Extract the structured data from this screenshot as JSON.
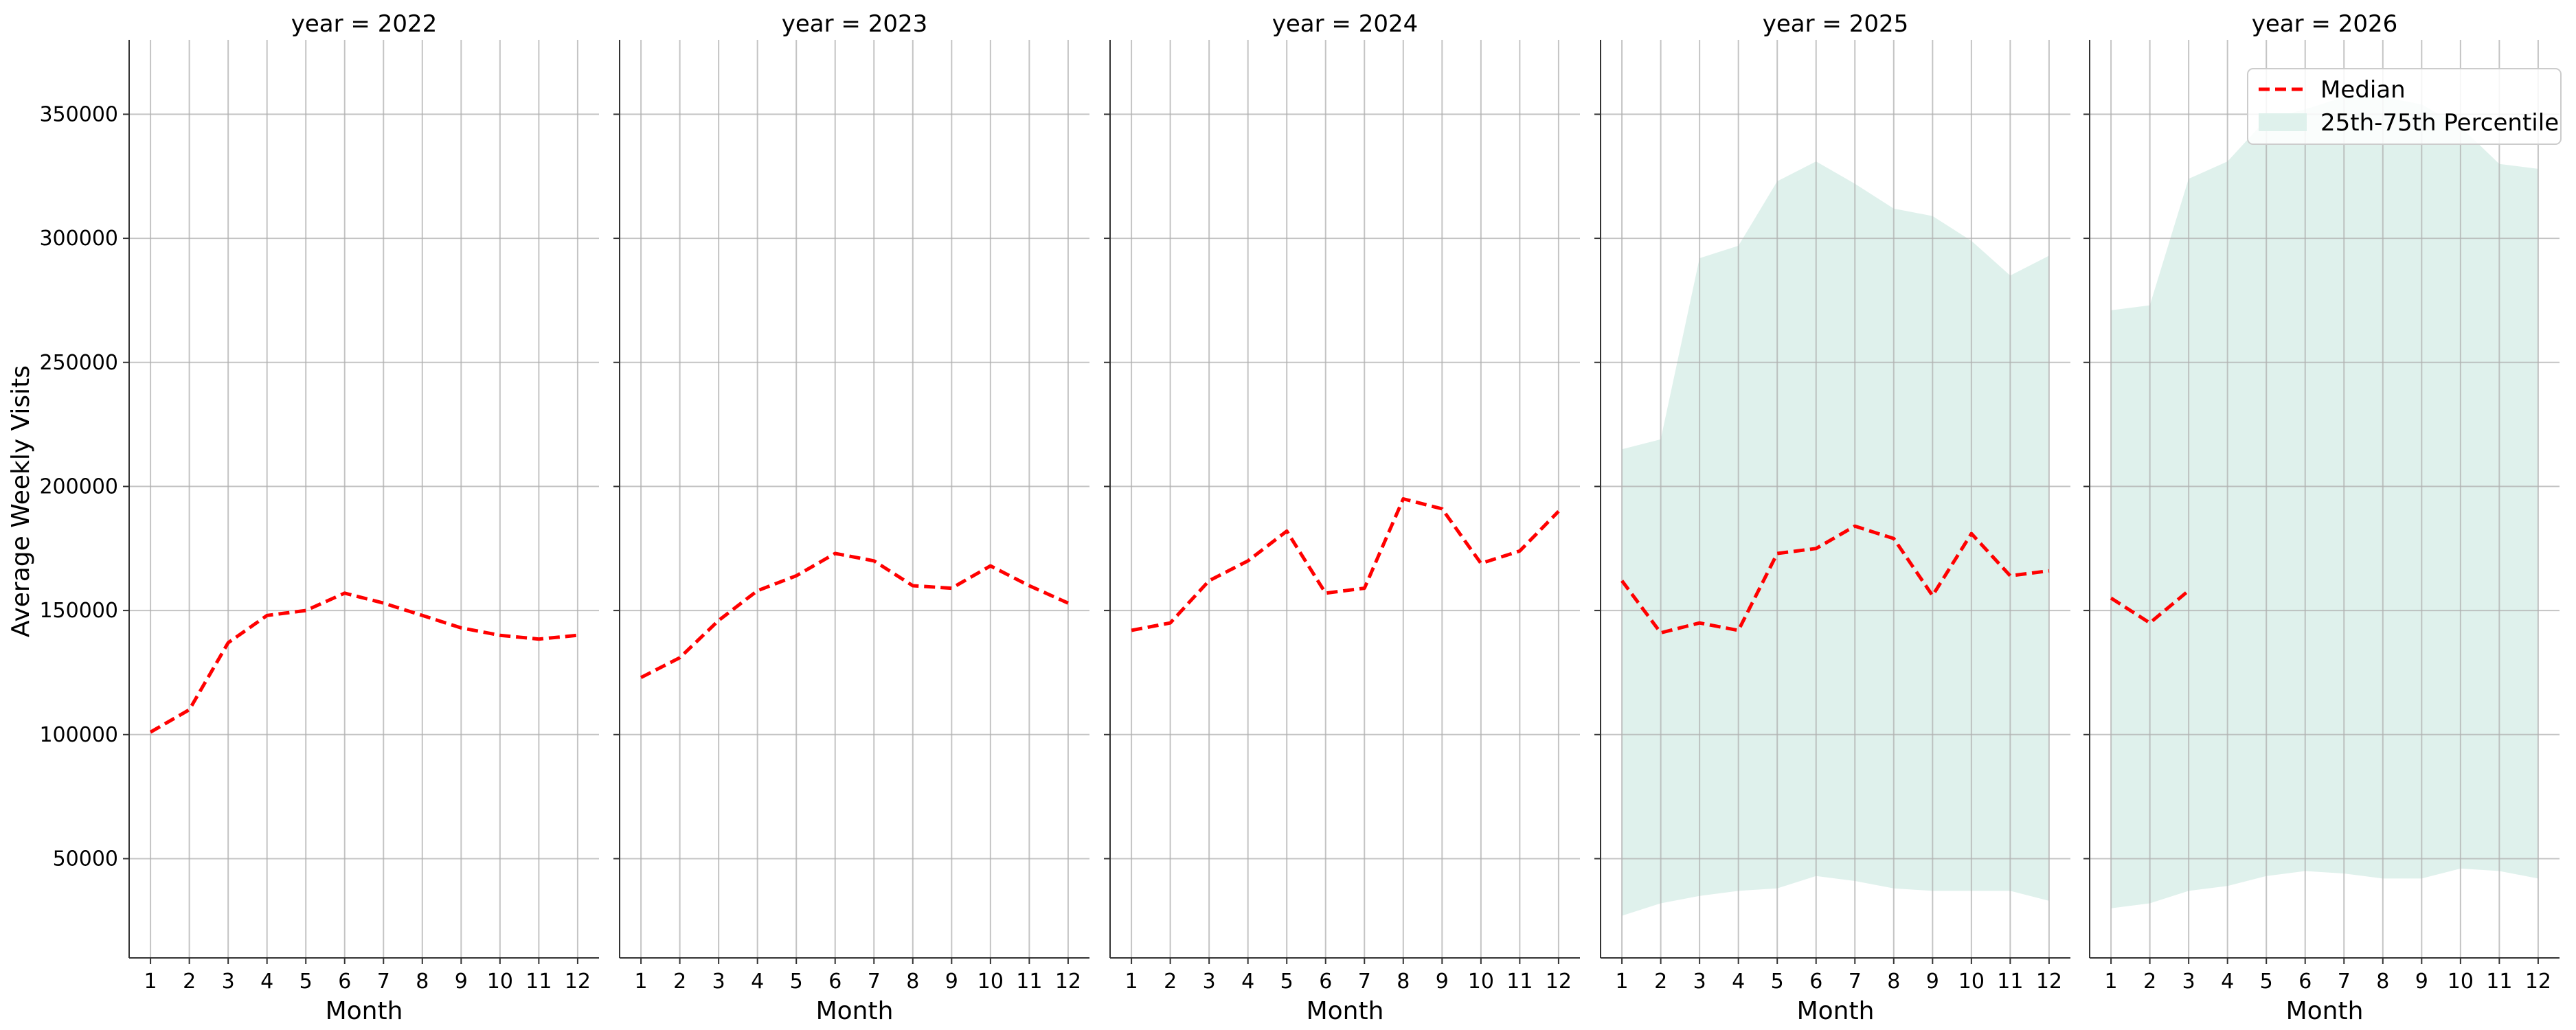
{
  "chart_data": {
    "type": "line",
    "ylabel": "Average Weekly Visits",
    "xlabel": "Month",
    "x": [
      1,
      2,
      3,
      4,
      5,
      6,
      7,
      8,
      9,
      10,
      11,
      12
    ],
    "ylim": [
      10000,
      380000
    ],
    "yticks": [
      50000,
      100000,
      150000,
      200000,
      250000,
      300000,
      350000
    ],
    "grid": true,
    "legend": {
      "placement": "top-right",
      "entries": [
        "Median",
        "25th-75th Percentile"
      ]
    },
    "colors": {
      "median": "#ff0000",
      "band": "#dff1ec"
    },
    "panels": [
      {
        "title": "year = 2022",
        "median": [
          101000,
          110000,
          137000,
          148000,
          150000,
          157000,
          153000,
          148000,
          143000,
          140000,
          138500,
          140000
        ],
        "p25": [],
        "p75": []
      },
      {
        "title": "year = 2023",
        "median": [
          123000,
          131000,
          146000,
          158000,
          164000,
          173000,
          170000,
          160000,
          159000,
          168000,
          160000,
          153000
        ],
        "p25": [],
        "p75": []
      },
      {
        "title": "year = 2024",
        "median": [
          142000,
          145000,
          162000,
          170000,
          182000,
          157000,
          159000,
          195000,
          191000,
          169000,
          174000,
          190000
        ],
        "p25": [],
        "p75": []
      },
      {
        "title": "year = 2025",
        "median": [
          162000,
          141000,
          145000,
          142000,
          173000,
          175000,
          184000,
          179000,
          156000,
          181000,
          164000,
          166000
        ],
        "p25": [
          27000,
          32000,
          35000,
          37000,
          38000,
          43000,
          41000,
          38000,
          37000,
          37000,
          37000,
          33000
        ],
        "p75": [
          215000,
          219000,
          292000,
          297000,
          323000,
          331000,
          322000,
          312000,
          309000,
          299000,
          285000,
          293000
        ]
      },
      {
        "title": "year = 2026",
        "median": [
          155000,
          145000,
          158000
        ],
        "p25": [
          30000,
          32000,
          37000,
          39000,
          43000,
          45000,
          44000,
          42000,
          42000,
          46000,
          45000,
          42000
        ],
        "p75": [
          271000,
          273000,
          324000,
          331000,
          348000,
          352000,
          357000,
          357000,
          354000,
          345000,
          330000,
          328000
        ]
      }
    ]
  }
}
